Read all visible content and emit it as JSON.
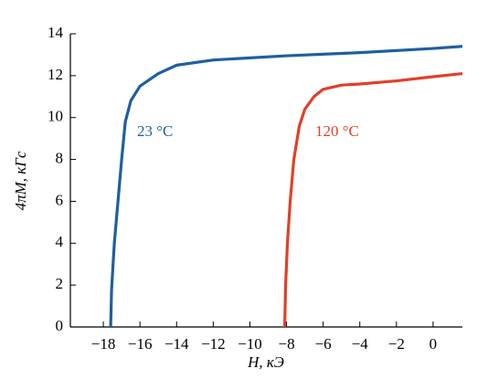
{
  "chart_data": {
    "type": "line",
    "xlabel": "H, кЭ",
    "ylabel": "4πM, кГс",
    "xlim": [
      -19.8,
      1.6
    ],
    "ylim": [
      0,
      14
    ],
    "xticks": [
      {
        "value": -18,
        "label": "−18"
      },
      {
        "value": -16,
        "label": "−16"
      },
      {
        "value": -14,
        "label": "−14"
      },
      {
        "value": -12,
        "label": "−12"
      },
      {
        "value": -10,
        "label": "−10"
      },
      {
        "value": -8,
        "label": "−8"
      },
      {
        "value": -6,
        "label": "−6"
      },
      {
        "value": -4,
        "label": "−4"
      },
      {
        "value": -2,
        "label": "−2"
      },
      0
    ],
    "yticks": [
      0,
      2,
      4,
      6,
      8,
      10,
      12,
      14
    ],
    "series": [
      {
        "name": "23 °C",
        "color": "#1f5fa0",
        "x": [
          -17.6,
          -17.55,
          -17.4,
          -17.2,
          -17.0,
          -16.8,
          -16.5,
          -16.0,
          -15.0,
          -14.0,
          -12.0,
          -10.0,
          -8.0,
          -4.0,
          0.0,
          1.6
        ],
        "values": [
          0,
          1.8,
          4,
          6,
          8,
          9.8,
          10.8,
          11.5,
          12.1,
          12.5,
          12.75,
          12.85,
          12.95,
          13.1,
          13.3,
          13.4
        ]
      },
      {
        "name": "120 °C",
        "color": "#e0402a",
        "x": [
          -8.1,
          -8.05,
          -7.95,
          -7.8,
          -7.6,
          -7.3,
          -7.0,
          -6.5,
          -6.0,
          -5.0,
          -4.0,
          -2.0,
          0.0,
          1.6
        ],
        "values": [
          0,
          2,
          4,
          6,
          8,
          9.6,
          10.4,
          11.0,
          11.35,
          11.55,
          11.6,
          11.75,
          11.95,
          12.1
        ]
      }
    ]
  }
}
